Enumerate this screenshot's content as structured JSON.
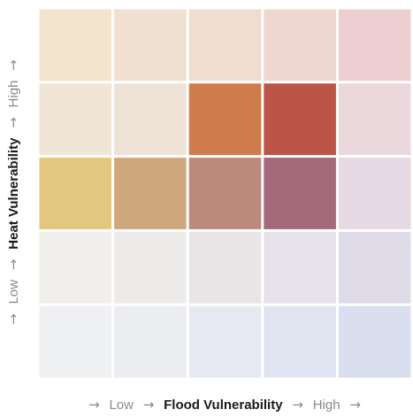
{
  "chart_data": {
    "type": "heatmap",
    "grid": false,
    "x_axis": {
      "title": "Flood Vulnerability",
      "low_label": "Low",
      "high_label": "High",
      "arrow": "→",
      "levels": [
        1,
        2,
        3,
        4,
        5
      ]
    },
    "y_axis": {
      "title": "Heat Vulnerability",
      "low_label": "Low",
      "high_label": "High",
      "arrow": "→",
      "levels": [
        1,
        2,
        3,
        4,
        5
      ]
    },
    "cells": [
      {
        "heat": 5,
        "flood": 1,
        "color": "#f3e4cd"
      },
      {
        "heat": 5,
        "flood": 2,
        "color": "#f0e0cf"
      },
      {
        "heat": 5,
        "flood": 3,
        "color": "#f0ddd0"
      },
      {
        "heat": 5,
        "flood": 4,
        "color": "#efd6d1"
      },
      {
        "heat": 5,
        "flood": 5,
        "color": "#edcfd1"
      },
      {
        "heat": 4,
        "flood": 1,
        "color": "#f1e5d5"
      },
      {
        "heat": 4,
        "flood": 2,
        "color": "#efe2d7"
      },
      {
        "heat": 4,
        "flood": 3,
        "color": "#ce7c4c"
      },
      {
        "heat": 4,
        "flood": 4,
        "color": "#bd5448"
      },
      {
        "heat": 4,
        "flood": 5,
        "color": "#ead8dc"
      },
      {
        "heat": 3,
        "flood": 1,
        "color": "#e3c77f"
      },
      {
        "heat": 3,
        "flood": 2,
        "color": "#cfa77d"
      },
      {
        "heat": 3,
        "flood": 3,
        "color": "#bc8a7c"
      },
      {
        "heat": 3,
        "flood": 4,
        "color": "#a4697b"
      },
      {
        "heat": 3,
        "flood": 5,
        "color": "#e6d9e3"
      },
      {
        "heat": 2,
        "flood": 1,
        "color": "#f0efec"
      },
      {
        "heat": 2,
        "flood": 2,
        "color": "#ecebea"
      },
      {
        "heat": 2,
        "flood": 3,
        "color": "#e8e5e7"
      },
      {
        "heat": 2,
        "flood": 4,
        "color": "#e5e2ea"
      },
      {
        "heat": 2,
        "flood": 5,
        "color": "#e0dbe8"
      },
      {
        "heat": 1,
        "flood": 1,
        "color": "#eff0f2"
      },
      {
        "heat": 1,
        "flood": 2,
        "color": "#ebedf1"
      },
      {
        "heat": 1,
        "flood": 3,
        "color": "#e6e9f2"
      },
      {
        "heat": 1,
        "flood": 4,
        "color": "#e1e5f1"
      },
      {
        "heat": 1,
        "flood": 5,
        "color": "#dadff0"
      }
    ]
  }
}
